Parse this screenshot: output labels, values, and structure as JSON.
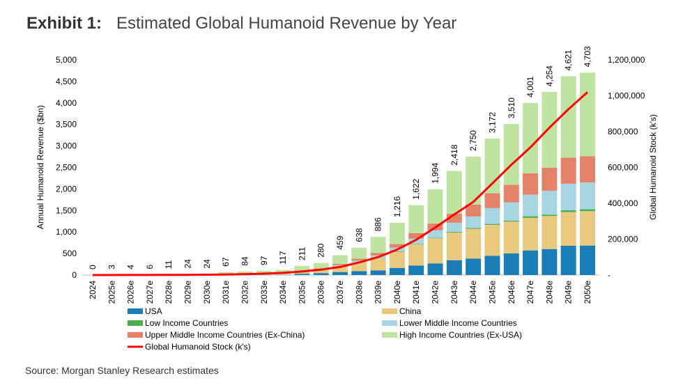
{
  "header": {
    "exhibit": "Exhibit 1:",
    "title": "Estimated Global Humanoid Revenue by Year"
  },
  "source": "Source: Morgan Stanley Research estimates",
  "chart_data": {
    "type": "bar",
    "stacked": true,
    "title": "Estimated Global Humanoid Revenue by Year",
    "ylabel": "Annual Humanoid Revenue ($bn)",
    "y2label": "Global Humanoid Stock (k's)",
    "ylim": [
      0,
      5000
    ],
    "y2lim": [
      0,
      1200000
    ],
    "yticks": [
      "0",
      "500",
      "1,000",
      "1,500",
      "2,000",
      "2,500",
      "3,000",
      "3,500",
      "4,000",
      "4,500",
      "5,000"
    ],
    "y2ticks": [
      "-",
      "200,000",
      "400,000",
      "600,000",
      "800,000",
      "1,000,000",
      "1,200,000"
    ],
    "categories": [
      "2024",
      "2025e",
      "2026e",
      "2027e",
      "2028e",
      "2029e",
      "2030e",
      "2031e",
      "2032e",
      "2033e",
      "2034e",
      "2035e",
      "2036e",
      "2037e",
      "2038e",
      "2039e",
      "2040e",
      "2041e",
      "2042e",
      "2043e",
      "2044e",
      "2045e",
      "2046e",
      "2047e",
      "2048e",
      "2049e",
      "2050e"
    ],
    "totals": [
      "0",
      "3",
      "4",
      "6",
      "11",
      "24",
      "24",
      "67",
      "84",
      "97",
      "117",
      "211",
      "280",
      "459",
      "638",
      "886",
      "1,216",
      "1,622",
      "1,994",
      "2,418",
      "2,750",
      "3,172",
      "3,510",
      "4,001",
      "4,254",
      "4,621",
      "4,703"
    ],
    "series": [
      {
        "name": "USA",
        "color": "#1a7db5",
        "values": [
          0,
          0.5,
          0.6,
          1,
          2,
          2,
          2,
          3,
          4,
          4,
          5,
          30,
          45,
          70,
          90,
          110,
          162,
          222,
          270,
          345,
          384,
          448,
          502,
          572,
          604,
          680,
          685
        ]
      },
      {
        "name": "China",
        "color": "#e8c97e",
        "values": [
          0,
          0.5,
          0.6,
          1,
          2,
          2,
          2,
          3,
          4,
          4,
          5,
          45,
          70,
          130,
          200,
          280,
          378,
          491,
          584,
          643,
          690,
          718,
          740,
          756,
          768,
          783,
          801
        ]
      },
      {
        "name": "Low Income Countries",
        "color": "#4caf50",
        "values": [
          0,
          0,
          0,
          0,
          0,
          0,
          0,
          0,
          0,
          0,
          0,
          1,
          2,
          3,
          4,
          5,
          11,
          11,
          11,
          16,
          22,
          22,
          22,
          38,
          32,
          41,
          42
        ]
      },
      {
        "name": "Lower Middle Income Countries",
        "color": "#a8d5e2",
        "values": [
          0,
          0.5,
          0.6,
          1,
          1,
          2,
          2,
          2,
          3,
          4,
          5,
          10,
          15,
          25,
          40,
          60,
          86,
          124,
          172,
          211,
          265,
          367,
          426,
          502,
          556,
          618,
          622
        ]
      },
      {
        "name": "Upper Middle Income Countries (Ex-China)",
        "color": "#e5836a",
        "values": [
          0,
          0.5,
          0.6,
          1,
          1,
          2,
          2,
          2,
          3,
          4,
          5,
          15,
          20,
          30,
          45,
          60,
          81,
          124,
          162,
          211,
          275,
          345,
          405,
          497,
          535,
          605,
          609
        ]
      },
      {
        "name": "High Income Countries (Ex-USA)",
        "color": "#bfe3a0",
        "values": [
          0,
          1,
          1.6,
          2,
          5,
          16,
          16,
          57,
          70,
          81,
          97,
          110,
          128,
          201,
          259,
          371,
          498,
          650,
          795,
          992,
          1114,
          1272,
          1415,
          1636,
          1759,
          1894,
          1944
        ]
      }
    ],
    "line": {
      "name": "Global Humanoid Stock (k's)",
      "color": "#ff0000",
      "axis": "right",
      "values": [
        0,
        200,
        400,
        600,
        900,
        1200,
        2000,
        3000,
        5000,
        8000,
        12000,
        20000,
        30000,
        45000,
        70000,
        100000,
        142000,
        197000,
        265000,
        338000,
        408000,
        511000,
        615000,
        712000,
        822000,
        925000,
        1020000
      ]
    }
  }
}
